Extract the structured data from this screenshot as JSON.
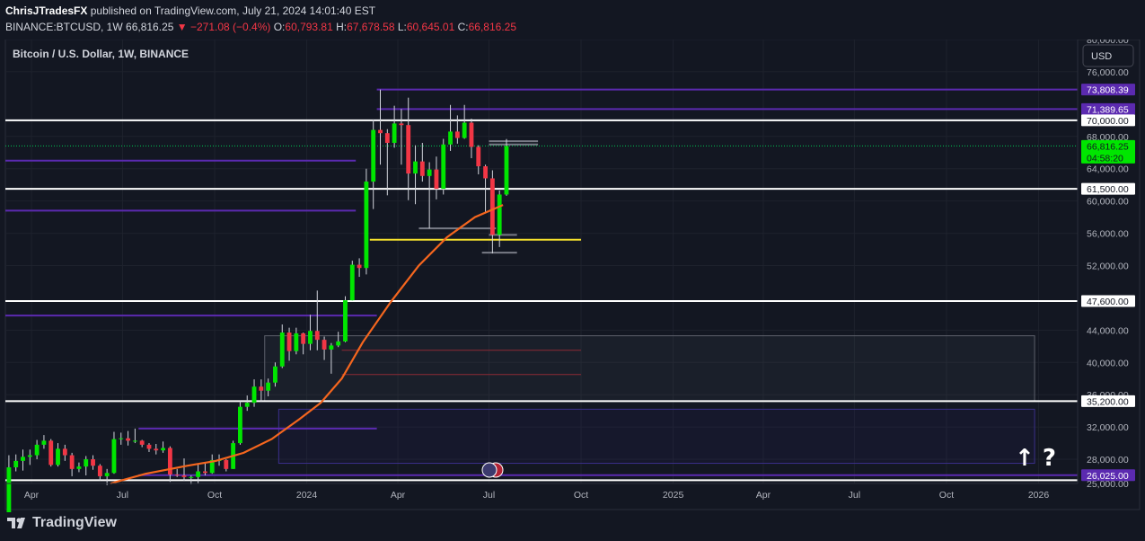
{
  "header": {
    "author": "ChrisJTradesFX",
    "published_text": "published on TradingView.com, July 21, 2024 14:01:40 EST",
    "symbol": "BINANCE:BTCUSD, 1W",
    "last": "66,816.25",
    "change": "▼ −271.08 (−0.4%)",
    "o_label": "O:",
    "o": "60,793.81",
    "h_label": "H:",
    "h": "67,678.58",
    "l_label": "L:",
    "l": "60,645.01",
    "c_label": "C:",
    "c": "66,816.25"
  },
  "legend_title": "Bitcoin / U.S. Dollar, 1W, BINANCE",
  "currency_button": "USD",
  "footer": {
    "brand": "TradingView"
  },
  "annotation": "↑ ?",
  "colors": {
    "bg": "#131722",
    "up": "#00e600",
    "down": "#f23645",
    "ma": "#f5661e",
    "purple": "#5b2ab0",
    "white": "#ffffff",
    "yellow": "#f5e02c",
    "gray": "#787b86"
  },
  "chart_data": {
    "type": "candlestick",
    "x_range": [
      "2023-03-06",
      "2026-02-09"
    ],
    "ylim": [
      25000,
      80000
    ],
    "x_ticks": [
      {
        "label": "Apr",
        "date": "2023-04-01"
      },
      {
        "label": "Jul",
        "date": "2023-07-01"
      },
      {
        "label": "Oct",
        "date": "2023-10-01"
      },
      {
        "label": "2024",
        "date": "2024-01-01"
      },
      {
        "label": "Apr",
        "date": "2024-04-01"
      },
      {
        "label": "Jul",
        "date": "2024-07-01"
      },
      {
        "label": "Oct",
        "date": "2024-10-01"
      },
      {
        "label": "2025",
        "date": "2025-01-01"
      },
      {
        "label": "Apr",
        "date": "2025-04-01"
      },
      {
        "label": "Jul",
        "date": "2025-07-01"
      },
      {
        "label": "Oct",
        "date": "2025-10-01"
      },
      {
        "label": "2026",
        "date": "2026-01-01"
      }
    ],
    "y_ticks": [
      {
        "label": "80,000.00",
        "v": 80000
      },
      {
        "label": "76,000.00",
        "v": 76000
      },
      {
        "label": "68,000.00",
        "v": 68000
      },
      {
        "label": "64,000.00",
        "v": 64000
      },
      {
        "label": "60,000.00",
        "v": 60000
      },
      {
        "label": "56,000.00",
        "v": 56000
      },
      {
        "label": "52,000.00",
        "v": 52000
      },
      {
        "label": "44,000.00",
        "v": 44000
      },
      {
        "label": "40,000.00",
        "v": 40000
      },
      {
        "label": "36,000.00",
        "v": 36000
      },
      {
        "label": "32,000.00",
        "v": 32000
      },
      {
        "label": "28,000.00",
        "v": 28000
      },
      {
        "label": "25,000.00",
        "v": 25000
      }
    ],
    "price_labels": [
      {
        "label": "73,808.39",
        "v": 73808,
        "style": "purple"
      },
      {
        "label": "71,389.65",
        "v": 71390,
        "style": "purple"
      },
      {
        "label": "70,000.00",
        "v": 70000,
        "style": "white"
      },
      {
        "label": "66,816.25",
        "v": 66816,
        "style": "green",
        "sub": "04:58:20"
      },
      {
        "label": "61,500.00",
        "v": 61500,
        "style": "white"
      },
      {
        "label": "47,600.00",
        "v": 47600,
        "style": "white"
      },
      {
        "label": "35,200.00",
        "v": 35200,
        "style": "white"
      },
      {
        "label": "26,025.00",
        "v": 26025,
        "style": "purple"
      }
    ],
    "levels": [
      {
        "v": 70000,
        "x0": "2023-03-06",
        "x1": "2026-02-09",
        "color": "white"
      },
      {
        "v": 61500,
        "x0": "2023-03-06",
        "x1": "2026-02-09",
        "color": "white"
      },
      {
        "v": 47600,
        "x0": "2023-03-06",
        "x1": "2026-02-09",
        "color": "white"
      },
      {
        "v": 35200,
        "x0": "2023-03-06",
        "x1": "2026-02-09",
        "color": "white"
      },
      {
        "v": 25400,
        "x0": "2023-03-06",
        "x1": "2026-02-09",
        "color": "white"
      },
      {
        "v": 73808,
        "x0": "2024-03-11",
        "x1": "2026-02-09",
        "color": "purple"
      },
      {
        "v": 71390,
        "x0": "2024-03-11",
        "x1": "2026-02-09",
        "color": "purple"
      },
      {
        "v": 26025,
        "x0": "2023-07-17",
        "x1": "2026-02-09",
        "color": "purple"
      },
      {
        "v": 65000,
        "x0": "2023-03-06",
        "x1": "2024-02-19",
        "color": "purple"
      },
      {
        "v": 58800,
        "x0": "2023-03-06",
        "x1": "2024-02-19",
        "color": "purple"
      },
      {
        "v": 45800,
        "x0": "2023-03-06",
        "x1": "2024-03-11",
        "color": "purple"
      },
      {
        "v": 31800,
        "x0": "2023-07-17",
        "x1": "2024-03-11",
        "color": "purple"
      },
      {
        "v": 55200,
        "x0": "2024-03-04",
        "x1": "2024-10-01",
        "color": "yellow"
      },
      {
        "v": 41500,
        "x0": "2024-02-05",
        "x1": "2024-10-01",
        "color": "red"
      },
      {
        "v": 38500,
        "x0": "2024-02-05",
        "x1": "2024-10-01",
        "color": "red"
      },
      {
        "v": 67000,
        "x0": "2024-07-01",
        "x1": "2024-08-19",
        "color": "gray"
      },
      {
        "v": 67400,
        "x0": "2024-07-01",
        "x1": "2024-08-19",
        "color": "gray"
      },
      {
        "v": 56600,
        "x0": "2024-04-22",
        "x1": "2024-07-08",
        "color": "gray"
      },
      {
        "v": 55800,
        "x0": "2024-07-01",
        "x1": "2024-07-29",
        "color": "gray"
      },
      {
        "v": 53600,
        "x0": "2024-06-24",
        "x1": "2024-07-29",
        "color": "gray"
      }
    ],
    "zones": [
      {
        "x0": "2023-11-20",
        "x1": "2025-12-28",
        "v0": 35200,
        "v1": 43300,
        "color": "gray"
      },
      {
        "x0": "2023-12-04",
        "x1": "2025-12-28",
        "v0": 27500,
        "v1": 34200,
        "color": "purple"
      }
    ],
    "ma": [
      [
        "2023-06-19",
        25000
      ],
      [
        "2023-07-24",
        26200
      ],
      [
        "2023-09-04",
        27200
      ],
      [
        "2023-10-02",
        27800
      ],
      [
        "2023-10-30",
        28800
      ],
      [
        "2023-11-27",
        30500
      ],
      [
        "2023-12-25",
        33000
      ],
      [
        "2024-01-15",
        35000
      ],
      [
        "2024-02-05",
        38000
      ],
      [
        "2024-02-26",
        42500
      ],
      [
        "2024-03-25",
        47500
      ],
      [
        "2024-04-22",
        52000
      ],
      [
        "2024-05-20",
        55500
      ],
      [
        "2024-06-17",
        58000
      ],
      [
        "2024-07-15",
        59500
      ]
    ],
    "candles": [
      [
        "2023-03-06",
        20000,
        27000,
        28500,
        19600
      ],
      [
        "2023-03-13",
        27000,
        27800,
        28600,
        26500
      ],
      [
        "2023-03-20",
        27800,
        28300,
        29200,
        26600
      ],
      [
        "2023-03-27",
        28300,
        28500,
        29200,
        27300
      ],
      [
        "2023-04-03",
        28500,
        29800,
        30400,
        28000
      ],
      [
        "2023-04-10",
        29800,
        30300,
        31000,
        29300
      ],
      [
        "2023-04-17",
        30300,
        27300,
        30500,
        27100
      ],
      [
        "2023-04-24",
        27300,
        29300,
        30000,
        27100
      ],
      [
        "2023-05-01",
        29300,
        28500,
        29800,
        27800
      ],
      [
        "2023-05-08",
        28500,
        26800,
        28800,
        25900
      ],
      [
        "2023-05-15",
        26800,
        27100,
        27600,
        26400
      ],
      [
        "2023-05-22",
        27100,
        28000,
        28400,
        26000
      ],
      [
        "2023-05-29",
        28000,
        27200,
        28500,
        26700
      ],
      [
        "2023-06-05",
        27200,
        25900,
        27400,
        25400
      ],
      [
        "2023-06-12",
        25900,
        26300,
        26800,
        24800
      ],
      [
        "2023-06-19",
        26300,
        30500,
        31400,
        26200
      ],
      [
        "2023-06-26",
        30500,
        30600,
        31300,
        29800
      ],
      [
        "2023-07-03",
        30600,
        30300,
        31500,
        29700
      ],
      [
        "2023-07-10",
        30300,
        30300,
        31800,
        30000
      ],
      [
        "2023-07-17",
        30300,
        29800,
        30400,
        29500
      ],
      [
        "2023-07-24",
        29800,
        29300,
        30000,
        28900
      ],
      [
        "2023-07-31",
        29300,
        29100,
        29900,
        28600
      ],
      [
        "2023-08-07",
        29100,
        29400,
        30200,
        28800
      ],
      [
        "2023-08-14",
        29400,
        26100,
        29600,
        25200
      ],
      [
        "2023-08-21",
        26100,
        26000,
        26800,
        25800
      ],
      [
        "2023-08-28",
        26000,
        25800,
        28100,
        25300
      ],
      [
        "2023-09-04",
        25800,
        25800,
        26000,
        24900
      ],
      [
        "2023-09-11",
        25800,
        26500,
        27400,
        25000
      ],
      [
        "2023-09-18",
        26500,
        26300,
        27500,
        26000
      ],
      [
        "2023-09-25",
        26300,
        27900,
        28600,
        26200
      ],
      [
        "2023-10-02",
        27900,
        27900,
        28600,
        27200
      ],
      [
        "2023-10-09",
        27900,
        26800,
        28000,
        26500
      ],
      [
        "2023-10-16",
        26800,
        30000,
        30300,
        26800
      ],
      [
        "2023-10-23",
        30000,
        34500,
        35200,
        29800
      ],
      [
        "2023-10-30",
        34500,
        35000,
        35900,
        34000
      ],
      [
        "2023-11-06",
        35000,
        37000,
        37900,
        34500
      ],
      [
        "2023-11-13",
        37000,
        36500,
        37900,
        35200
      ],
      [
        "2023-11-20",
        36500,
        37500,
        38000,
        35800
      ],
      [
        "2023-11-27",
        37500,
        39500,
        40000,
        37000
      ],
      [
        "2023-12-04",
        39500,
        43700,
        44700,
        39300
      ],
      [
        "2023-12-11",
        43700,
        41400,
        44300,
        40200
      ],
      [
        "2023-12-18",
        41400,
        43600,
        44300,
        41000
      ],
      [
        "2023-12-25",
        43600,
        42300,
        43700,
        41000
      ],
      [
        "2024-01-01",
        42300,
        43900,
        45900,
        41500
      ],
      [
        "2024-01-08",
        43900,
        42800,
        48900,
        41500
      ],
      [
        "2024-01-15",
        42800,
        41600,
        43200,
        40300
      ],
      [
        "2024-01-22",
        41600,
        42100,
        42400,
        38600
      ],
      [
        "2024-01-29",
        42100,
        42600,
        43800,
        41900
      ],
      [
        "2024-02-05",
        42600,
        47700,
        48200,
        42500
      ],
      [
        "2024-02-12",
        47700,
        52100,
        52600,
        47600
      ],
      [
        "2024-02-19",
        52100,
        51700,
        52900,
        50600
      ],
      [
        "2024-02-26",
        51700,
        62400,
        64000,
        50900
      ],
      [
        "2024-03-04",
        62400,
        68800,
        70100,
        59000
      ],
      [
        "2024-03-11",
        68800,
        68400,
        73800,
        64500
      ],
      [
        "2024-03-18",
        68400,
        67200,
        68900,
        60700
      ],
      [
        "2024-03-25",
        67200,
        69600,
        71800,
        66600
      ],
      [
        "2024-04-01",
        69600,
        69400,
        71400,
        64500
      ],
      [
        "2024-04-08",
        69400,
        63400,
        72800,
        60100
      ],
      [
        "2024-04-15",
        63400,
        64900,
        66900,
        59600
      ],
      [
        "2024-04-22",
        64900,
        63100,
        67200,
        62400
      ],
      [
        "2024-04-29",
        63100,
        63900,
        64800,
        56600
      ],
      [
        "2024-05-06",
        63900,
        61500,
        65500,
        60200
      ],
      [
        "2024-05-13",
        61500,
        67000,
        67700,
        60800
      ],
      [
        "2024-05-20",
        67000,
        68600,
        71900,
        66200
      ],
      [
        "2024-05-27",
        68600,
        67800,
        70600,
        67100
      ],
      [
        "2024-06-03",
        67800,
        69700,
        71900,
        67700
      ],
      [
        "2024-06-10",
        69700,
        66700,
        70200,
        65300
      ],
      [
        "2024-06-17",
        66700,
        64300,
        66900,
        63300
      ],
      [
        "2024-06-24",
        64300,
        62800,
        64500,
        58500
      ],
      [
        "2024-07-01",
        62800,
        55800,
        63800,
        53500
      ],
      [
        "2024-07-08",
        55800,
        60800,
        61300,
        54300
      ],
      [
        "2024-07-15",
        60800,
        66816,
        67678,
        60645
      ]
    ]
  }
}
